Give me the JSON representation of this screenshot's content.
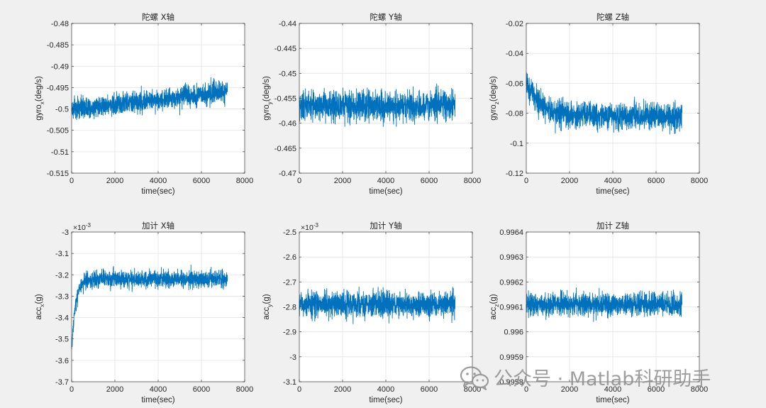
{
  "chart_data": [
    {
      "type": "line",
      "title": "陀螺 X轴",
      "xlabel": "time(sec)",
      "ylabel_main": "gyro",
      "ylabel_sub": "x",
      "ylabel_suffix": "(deg/s)",
      "xlim": [
        0,
        8000
      ],
      "ylim": [
        -0.515,
        -0.48
      ],
      "xticks": [
        0,
        2000,
        4000,
        6000,
        8000
      ],
      "xtick_labels": [
        "0",
        "2000",
        "4000",
        "6000",
        "8000"
      ],
      "yticks": [
        -0.515,
        -0.51,
        -0.505,
        -0.5,
        -0.495,
        -0.49,
        -0.485,
        -0.48
      ],
      "ytick_labels": [
        "-0.515",
        "-0.51",
        "-0.505",
        "-0.5",
        "-0.495",
        "-0.49",
        "-0.485",
        "-0.48"
      ],
      "exponent": "",
      "grid": true,
      "color": "#0072BD",
      "signal": {
        "t_end": 7200,
        "n": 1500,
        "mean_start": -0.5,
        "mean_end": -0.496,
        "noise": 0.0024,
        "tau": 0,
        "start": -0.5
      },
      "series": [
        {
          "name": "gyro x",
          "x": [
            0,
            1000,
            2000,
            3000,
            4000,
            5000,
            6000,
            7200
          ],
          "values": [
            -0.5,
            -0.4995,
            -0.499,
            -0.4985,
            -0.498,
            -0.4975,
            -0.497,
            -0.496
          ]
        }
      ]
    },
    {
      "type": "line",
      "title": "陀螺 Y轴",
      "xlabel": "time(sec)",
      "ylabel_main": "gyro",
      "ylabel_sub": "y",
      "ylabel_suffix": "(deg/s)",
      "xlim": [
        0,
        8000
      ],
      "ylim": [
        -0.47,
        -0.44
      ],
      "xticks": [
        0,
        2000,
        4000,
        6000,
        8000
      ],
      "xtick_labels": [
        "0",
        "2000",
        "4000",
        "6000",
        "8000"
      ],
      "yticks": [
        -0.47,
        -0.465,
        -0.46,
        -0.455,
        -0.45,
        -0.445,
        -0.44
      ],
      "ytick_labels": [
        "-0.47",
        "-0.465",
        "-0.46",
        "-0.455",
        "-0.45",
        "-0.445",
        "-0.44"
      ],
      "exponent": "",
      "grid": true,
      "color": "#0072BD",
      "signal": {
        "t_end": 7200,
        "n": 1500,
        "mean_start": -0.4565,
        "mean_end": -0.4565,
        "noise": 0.0028,
        "tau": 0,
        "start": -0.4565
      },
      "series": [
        {
          "name": "gyro y",
          "x": [
            0,
            1000,
            2000,
            3000,
            4000,
            5000,
            6000,
            7200
          ],
          "values": [
            -0.4565,
            -0.4565,
            -0.4565,
            -0.4565,
            -0.4565,
            -0.4565,
            -0.4565,
            -0.4565
          ]
        }
      ]
    },
    {
      "type": "line",
      "title": "陀螺 Z轴",
      "xlabel": "time(sec)",
      "ylabel_main": "gyro",
      "ylabel_sub": "z",
      "ylabel_suffix": "(deg/s)",
      "xlim": [
        0,
        8000
      ],
      "ylim": [
        -0.12,
        -0.02
      ],
      "xticks": [
        0,
        2000,
        4000,
        6000,
        8000
      ],
      "xtick_labels": [
        "0",
        "2000",
        "4000",
        "6000",
        "8000"
      ],
      "yticks": [
        -0.12,
        -0.1,
        -0.08,
        -0.06,
        -0.04,
        -0.02
      ],
      "ytick_labels": [
        "-0.12",
        "-0.1",
        "-0.08",
        "-0.06",
        "-0.04",
        "-0.02"
      ],
      "exponent": "",
      "grid": true,
      "color": "#0072BD",
      "signal": {
        "t_end": 7200,
        "n": 1500,
        "mean_start": -0.082,
        "mean_end": -0.082,
        "noise": 0.0085,
        "tau": 700,
        "start": -0.06
      },
      "series": [
        {
          "name": "gyro z",
          "x": [
            0,
            500,
            1000,
            2000,
            4000,
            6000,
            7200
          ],
          "values": [
            -0.06,
            -0.069,
            -0.076,
            -0.081,
            -0.082,
            -0.082,
            -0.082
          ]
        }
      ]
    },
    {
      "type": "line",
      "title": "加计 X轴",
      "xlabel": "time(sec)",
      "ylabel_main": "acc",
      "ylabel_sub": "x",
      "ylabel_suffix": "(g)",
      "xlim": [
        0,
        8000
      ],
      "ylim": [
        -3.7,
        -3.0
      ],
      "xticks": [
        0,
        2000,
        4000,
        6000,
        8000
      ],
      "xtick_labels": [
        "0",
        "2000",
        "4000",
        "6000",
        "8000"
      ],
      "yticks": [
        -3.7,
        -3.6,
        -3.5,
        -3.4,
        -3.3,
        -3.2,
        -3.1,
        -3.0
      ],
      "ytick_labels": [
        "-3.7",
        "-3.6",
        "-3.5",
        "-3.4",
        "-3.3",
        "-3.2",
        "-3.1",
        "-3"
      ],
      "exponent": "-3",
      "grid": true,
      "color": "#0072BD",
      "signal": {
        "t_end": 7200,
        "n": 1500,
        "mean_start": -3.22,
        "mean_end": -3.22,
        "noise": 0.038,
        "tau": 180,
        "start": -3.56
      },
      "series": [
        {
          "name": "acc x (×10^-3 g)",
          "x": [
            0,
            100,
            200,
            400,
            1000,
            4000,
            7200
          ],
          "values": [
            -3.56,
            -3.38,
            -3.3,
            -3.24,
            -3.22,
            -3.22,
            -3.22
          ]
        }
      ]
    },
    {
      "type": "line",
      "title": "加计 Y轴",
      "xlabel": "time(sec)",
      "ylabel_main": "acc",
      "ylabel_sub": "y",
      "ylabel_suffix": "(g)",
      "xlim": [
        0,
        8000
      ],
      "ylim": [
        -3.1,
        -2.5
      ],
      "xticks": [
        0,
        2000,
        4000,
        6000,
        8000
      ],
      "xtick_labels": [
        "0",
        "2000",
        "4000",
        "6000",
        "8000"
      ],
      "yticks": [
        -3.1,
        -3.0,
        -2.9,
        -2.8,
        -2.7,
        -2.6,
        -2.5
      ],
      "ytick_labels": [
        "-3.1",
        "-3",
        "-2.9",
        "-2.8",
        "-2.7",
        "-2.6",
        "-2.5"
      ],
      "exponent": "-3",
      "grid": true,
      "color": "#0072BD",
      "signal": {
        "t_end": 7200,
        "n": 1500,
        "mean_start": -2.79,
        "mean_end": -2.79,
        "noise": 0.05,
        "tau": 0,
        "start": -2.79
      },
      "series": [
        {
          "name": "acc y (×10^-3 g)",
          "x": [
            0,
            1000,
            2000,
            3000,
            4000,
            5000,
            6000,
            7200
          ],
          "values": [
            -2.79,
            -2.79,
            -2.79,
            -2.79,
            -2.79,
            -2.79,
            -2.79,
            -2.79
          ]
        }
      ]
    },
    {
      "type": "line",
      "title": "加计 Z轴",
      "xlabel": "time(sec)",
      "ylabel_main": "acc",
      "ylabel_sub": "z",
      "ylabel_suffix": "(g)",
      "xlim": [
        0,
        8000
      ],
      "ylim": [
        0.9958,
        0.9964
      ],
      "xticks": [
        0,
        2000,
        4000,
        6000,
        8000
      ],
      "xtick_labels": [
        "0",
        "2000",
        "4000",
        "6000",
        "8000"
      ],
      "yticks": [
        0.9958,
        0.9959,
        0.996,
        0.9961,
        0.9962,
        0.9963,
        0.9964
      ],
      "ytick_labels": [
        "0.9958",
        "0.9959",
        "0.996",
        "0.9961",
        "0.9962",
        "0.9963",
        "0.9964"
      ],
      "exponent": "",
      "grid": true,
      "color": "#0072BD",
      "signal": {
        "t_end": 7200,
        "n": 1500,
        "mean_start": 0.99611,
        "mean_end": 0.99611,
        "noise": 4.25e-05,
        "tau": 0,
        "start": 0.99611
      },
      "series": [
        {
          "name": "acc z",
          "x": [
            0,
            1000,
            2000,
            3000,
            4000,
            5000,
            6000,
            7200
          ],
          "values": [
            0.99611,
            0.99611,
            0.99611,
            0.99611,
            0.99611,
            0.99611,
            0.99611,
            0.99611
          ]
        }
      ]
    }
  ],
  "watermark": {
    "text": "公众号 · Matlab科研助手",
    "icon": "wechat-icon"
  }
}
